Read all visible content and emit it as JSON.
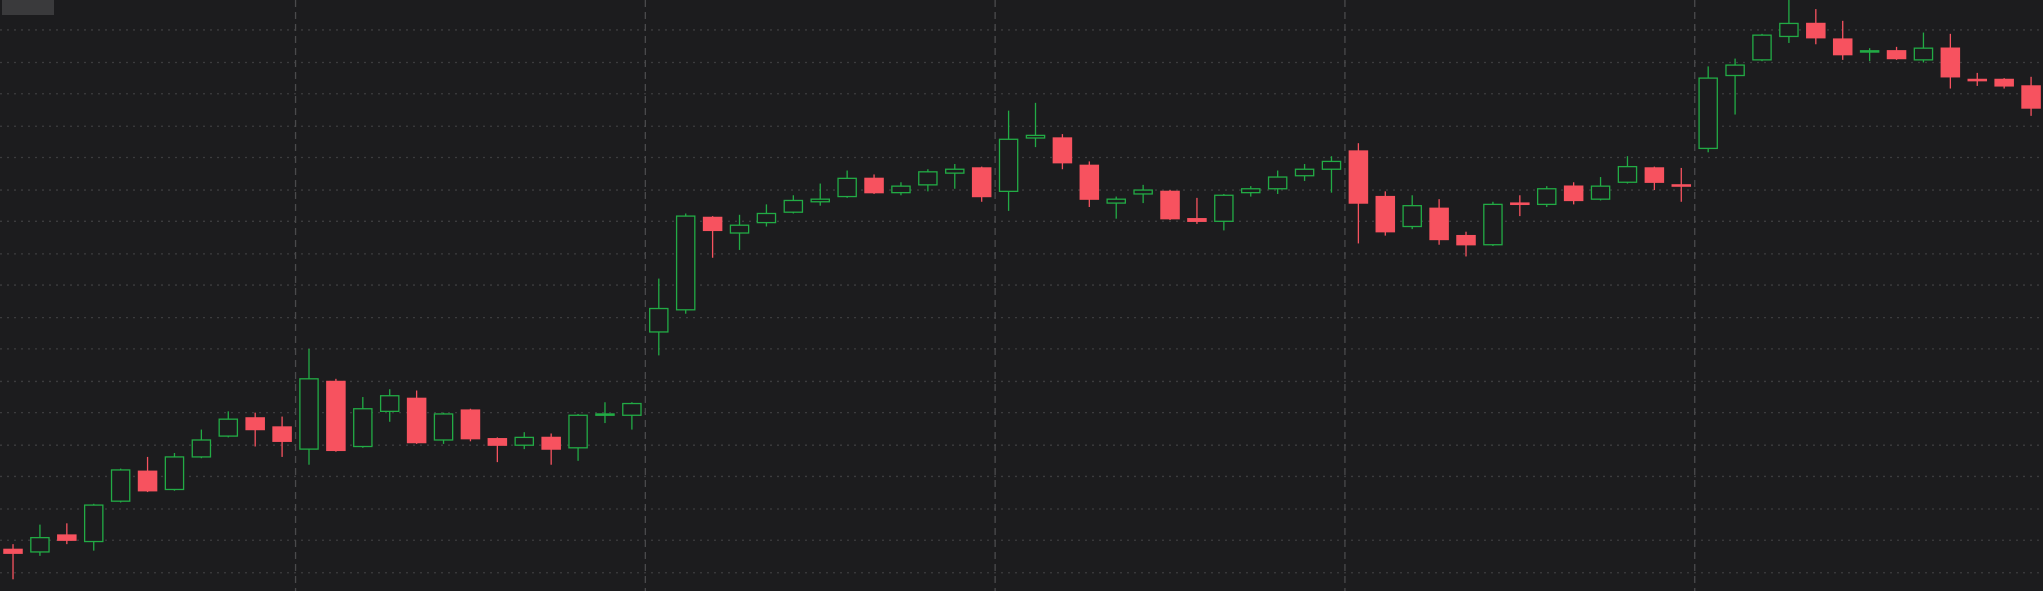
{
  "chart_data": {
    "type": "candlestick",
    "open": [
      32,
      30,
      43,
      38,
      69,
      92,
      78,
      103,
      119,
      133,
      126,
      109,
      161,
      111,
      138,
      148,
      116,
      139,
      117,
      112,
      118,
      110,
      135,
      135,
      199,
      216,
      287,
      275,
      283,
      291,
      299,
      303,
      317,
      306,
      312,
      321,
      325,
      307,
      348,
      348,
      327,
      298,
      305,
      307,
      286,
      284,
      306,
      309,
      319,
      324,
      338,
      303,
      280,
      294,
      273,
      266,
      298,
      297,
      311,
      301,
      314,
      325,
      312,
      340,
      396,
      408,
      426,
      436,
      424,
      414,
      415,
      408,
      417,
      393,
      393,
      388
    ],
    "high": [
      36,
      51,
      52,
      67,
      94,
      103,
      106,
      124,
      138,
      137,
      134,
      186,
      163,
      149,
      155,
      154,
      137,
      140,
      118,
      122,
      121,
      136,
      145,
      145,
      240,
      290,
      288,
      289,
      297,
      304,
      313,
      323,
      320,
      314,
      324,
      328,
      326,
      369,
      375,
      351,
      330,
      303,
      312,
      308,
      302,
      305,
      311,
      323,
      328,
      334,
      344,
      307,
      304,
      301,
      276,
      299,
      304,
      311,
      314,
      318,
      334,
      326,
      325,
      403,
      409,
      428,
      454,
      447,
      438,
      417,
      418,
      429,
      428,
      398,
      394,
      395
    ],
    "low": [
      9,
      27,
      36,
      31,
      68,
      76,
      77,
      102,
      118,
      111,
      103,
      97,
      107,
      110,
      130,
      113,
      113,
      115,
      99,
      109,
      97,
      100,
      129,
      124,
      181,
      213,
      256,
      262,
      280,
      290,
      296,
      302,
      305,
      304,
      307,
      309,
      299,
      292,
      341,
      324,
      295,
      286,
      298,
      285,
      282,
      277,
      303,
      305,
      315,
      306,
      267,
      273,
      278,
      266,
      257,
      265,
      288,
      295,
      297,
      300,
      313,
      308,
      299,
      337,
      366,
      407,
      421,
      420,
      408,
      407,
      408,
      406,
      386,
      388,
      386,
      365
    ],
    "close": [
      29,
      41,
      39,
      66,
      93,
      77,
      103,
      116,
      132,
      124,
      115,
      163,
      108,
      140,
      150,
      114,
      136,
      117,
      112,
      118,
      109,
      135,
      136,
      144,
      217,
      288,
      277,
      281,
      290,
      300,
      301,
      317,
      306,
      311,
      322,
      324,
      303,
      347,
      350,
      329,
      301,
      301,
      308,
      286,
      284,
      304,
      309,
      318,
      324,
      330,
      298,
      276,
      296,
      270,
      266,
      297,
      297,
      309,
      300,
      311,
      326,
      314,
      311,
      394,
      404,
      427,
      436,
      425,
      412,
      415,
      409,
      417,
      395,
      392,
      388,
      371
    ],
    "up_color": "#22ab45",
    "down_color": "#f7525f",
    "ylim": [
      0,
      454
    ],
    "yticks": [
      14,
      39,
      63,
      88,
      112,
      137,
      161,
      186,
      210,
      235,
      259,
      284,
      308,
      333,
      357,
      382,
      406,
      431
    ],
    "xticks": [
      10.5,
      23.5,
      36.5,
      49.5,
      62.5
    ],
    "grid": true
  }
}
